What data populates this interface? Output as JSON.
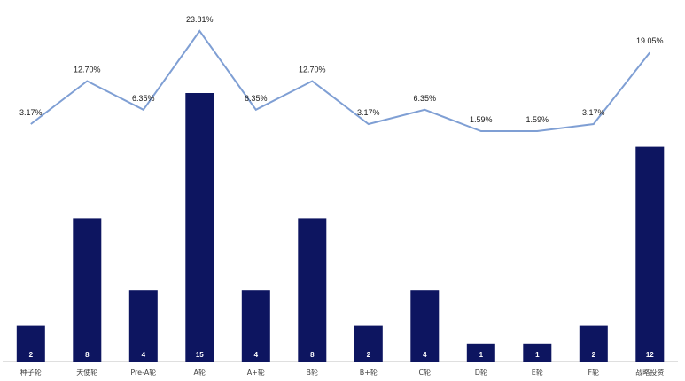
{
  "chart_data": {
    "type": "bar",
    "categories": [
      "种子轮",
      "天使轮",
      "Pre-A轮",
      "A轮",
      "A+轮",
      "B轮",
      "B+轮",
      "C轮",
      "D轮",
      "E轮",
      "F轮",
      "战略投资"
    ],
    "series": [
      {
        "values": [
          2,
          8,
          4,
          15,
          4,
          8,
          2,
          4,
          1,
          1,
          2,
          12
        ],
        "type": "bar"
      },
      {
        "values": [
          3.17,
          12.7,
          6.35,
          23.81,
          6.35,
          12.7,
          3.17,
          6.35,
          1.59,
          1.59,
          3.17,
          19.05
        ],
        "type": "line"
      }
    ],
    "bar_labels": [
      "2",
      "8",
      "4",
      "15",
      "4",
      "8",
      "2",
      "4",
      "1",
      "1",
      "2",
      "12"
    ],
    "line_labels": [
      "3.17%",
      "12.70%",
      "6.35%",
      "23.81%",
      "6.35%",
      "12.70%",
      "3.17%",
      "6.35%",
      "1.59%",
      "1.59%",
      "3.17%",
      "19.05%"
    ],
    "ylim_bar": [
      0,
      15
    ],
    "ylim_line": [
      0,
      23.81
    ],
    "grid": false,
    "legend": "none",
    "colors": {
      "bar": "#0d1560",
      "line": "#7f9fd4",
      "axis": "#bfbfbf"
    }
  }
}
